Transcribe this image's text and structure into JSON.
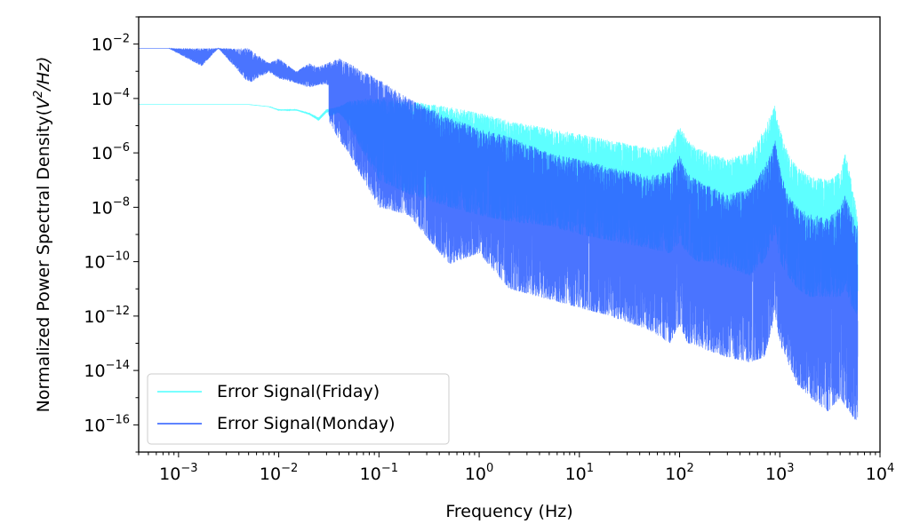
{
  "chart_data": {
    "type": "line",
    "title": "",
    "xlabel": "Frequency (Hz)",
    "ylabel": {
      "prefix": "Normalized Power Spectral Density(",
      "base": "V",
      "power": "2",
      "suffix": "/Hz)"
    },
    "x_scale": "log",
    "y_scale": "log",
    "xlim": [
      0.0004,
      10000
    ],
    "ylim": [
      1e-17,
      0.1
    ],
    "x_ticks": [
      {
        "value": 0.001,
        "base": "10",
        "exp": "−3"
      },
      {
        "value": 0.01,
        "base": "10",
        "exp": "−2"
      },
      {
        "value": 0.1,
        "base": "10",
        "exp": "−1"
      },
      {
        "value": 1,
        "base": "10",
        "exp": "0"
      },
      {
        "value": 10,
        "base": "10",
        "exp": "1"
      },
      {
        "value": 100,
        "base": "10",
        "exp": "2"
      },
      {
        "value": 1000,
        "base": "10",
        "exp": "3"
      },
      {
        "value": 10000,
        "base": "10",
        "exp": "4"
      }
    ],
    "y_ticks": [
      {
        "value": 0.01,
        "base": "10",
        "exp": "−2"
      },
      {
        "value": 0.0001,
        "base": "10",
        "exp": "−4"
      },
      {
        "value": 1e-06,
        "base": "10",
        "exp": "−6"
      },
      {
        "value": 1e-08,
        "base": "10",
        "exp": "−8"
      },
      {
        "value": 1e-10,
        "base": "10",
        "exp": "−10"
      },
      {
        "value": 1e-12,
        "base": "10",
        "exp": "−12"
      },
      {
        "value": 1e-14,
        "base": "10",
        "exp": "−14"
      },
      {
        "value": 1e-16,
        "base": "10",
        "exp": "−16"
      }
    ],
    "grid": false,
    "legend_position": "lower-left",
    "series": [
      {
        "name": "Error Signal(Friday)",
        "color": "#4dffff",
        "x": [
          0.0004,
          0.0008,
          0.0017,
          0.0025,
          0.005,
          0.008,
          0.01,
          0.015,
          0.02,
          0.025,
          0.03,
          0.04,
          0.05,
          0.07,
          0.1,
          0.2,
          0.5,
          1,
          2,
          5,
          10,
          20,
          50,
          80,
          100,
          120,
          150,
          200,
          300,
          500,
          700,
          900,
          1000,
          1200,
          1500,
          2000,
          3000,
          4000,
          4500,
          5000,
          6000
        ],
        "upper": [
          6e-05,
          6e-05,
          6e-05,
          6e-05,
          6e-05,
          5e-05,
          4e-05,
          4e-05,
          3e-05,
          2e-05,
          4e-05,
          5e-05,
          8e-05,
          0.0001,
          0.0001,
          8e-05,
          5e-05,
          3e-05,
          1.5e-05,
          8e-06,
          5e-06,
          3e-06,
          1.5e-06,
          2e-06,
          1e-05,
          3e-06,
          1.5e-06,
          1e-06,
          6e-07,
          1e-06,
          8e-06,
          6e-05,
          8e-06,
          1e-06,
          3e-07,
          1.5e-07,
          1e-07,
          2e-07,
          1e-06,
          2e-07,
          5e-09
        ],
        "lower": [
          6e-05,
          6e-05,
          6e-05,
          6e-05,
          6e-05,
          5e-05,
          3e-05,
          3e-05,
          2e-05,
          1e-05,
          2e-05,
          3e-05,
          1e-05,
          1e-06,
          1e-07,
          3e-08,
          1e-08,
          5e-09,
          3e-09,
          2e-09,
          1e-09,
          6e-10,
          3e-10,
          2e-10,
          5e-10,
          2e-10,
          1e-10,
          1e-10,
          6e-11,
          3e-11,
          1e-10,
          1e-09,
          1e-10,
          3e-11,
          1e-11,
          5e-12,
          5e-12,
          5e-12,
          1e-11,
          3e-12,
          1e-12
        ]
      },
      {
        "name": "Error Signal(Monday)",
        "color": "#2a5cff",
        "x": [
          0.0004,
          0.0008,
          0.0017,
          0.0025,
          0.005,
          0.008,
          0.01,
          0.015,
          0.02,
          0.025,
          0.03,
          0.04,
          0.05,
          0.07,
          0.1,
          0.2,
          0.5,
          1,
          2,
          5,
          10,
          20,
          50,
          80,
          100,
          120,
          150,
          200,
          300,
          500,
          700,
          900,
          1000,
          1200,
          1500,
          2000,
          3000,
          4000,
          4500,
          5000,
          6000
        ],
        "upper": [
          0.007,
          0.007,
          0.007,
          0.007,
          0.007,
          0.002,
          0.003,
          0.001,
          0.002,
          0.0015,
          0.002,
          0.003,
          0.002,
          0.001,
          0.0005,
          0.0001,
          2e-05,
          8e-06,
          4e-06,
          1e-06,
          6e-07,
          3e-07,
          1.5e-07,
          2e-07,
          8e-07,
          2e-07,
          1e-07,
          6e-08,
          3e-08,
          5e-08,
          3e-07,
          3e-06,
          3e-07,
          3e-08,
          1e-08,
          6e-09,
          4e-09,
          1e-08,
          3e-08,
          1e-08,
          2e-09
        ],
        "lower": [
          0.007,
          0.007,
          0.00015,
          0.007,
          4e-06,
          0.0003,
          4e-05,
          8e-05,
          1e-05,
          3e-05,
          2e-05,
          3e-06,
          1e-06,
          1e-07,
          1e-08,
          5e-09,
          8e-11,
          2e-10,
          1e-11,
          4e-12,
          2e-12,
          1e-12,
          3e-13,
          1e-13,
          5e-13,
          1e-13,
          8e-14,
          5e-14,
          3e-14,
          2e-14,
          3e-14,
          1e-12,
          1e-13,
          2e-14,
          3e-15,
          1e-15,
          3e-16,
          1e-15,
          5e-16,
          3e-16,
          1e-16
        ]
      }
    ]
  }
}
